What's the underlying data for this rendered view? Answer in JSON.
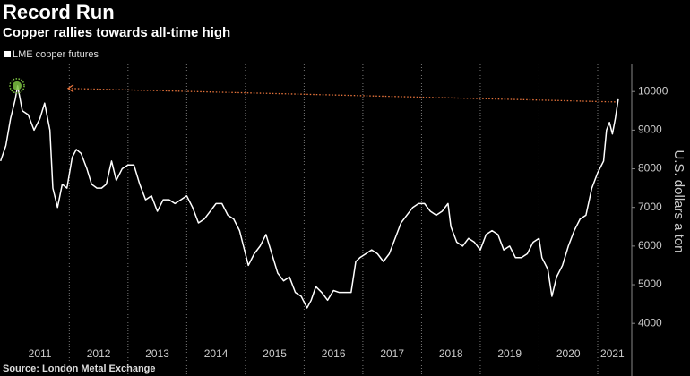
{
  "chart_data": {
    "type": "line",
    "title": "Record Run",
    "subtitle": "Copper rallies towards all-time high",
    "y_axis_label": "U.S. dollars a ton",
    "source": "Source: London Metal Exchange",
    "xlim": [
      2010.82,
      2021.58
    ],
    "ylim": [
      3680,
      10700
    ],
    "yticks": [
      4000,
      5000,
      6000,
      7000,
      8000,
      9000,
      10000
    ],
    "xticks": [
      {
        "value": 2011.5,
        "label": "2011"
      },
      {
        "value": 2012.5,
        "label": "2012"
      },
      {
        "value": 2013.5,
        "label": "2013"
      },
      {
        "value": 2014.5,
        "label": "2014"
      },
      {
        "value": 2015.5,
        "label": "2015"
      },
      {
        "value": 2016.5,
        "label": "2016"
      },
      {
        "value": 2017.5,
        "label": "2017"
      },
      {
        "value": 2018.5,
        "label": "2018"
      },
      {
        "value": 2019.5,
        "label": "2019"
      },
      {
        "value": 2020.5,
        "label": "2020"
      },
      {
        "value": 2021.25,
        "label": "2021"
      }
    ],
    "x_gridlines": [
      2012,
      2013,
      2014,
      2015,
      2016,
      2017,
      2018,
      2019,
      2020,
      2021
    ],
    "x": [
      2010.83,
      2010.92,
      2011.0,
      2011.08,
      2011.12,
      2011.2,
      2011.3,
      2011.4,
      2011.5,
      2011.58,
      2011.67,
      2011.72,
      2011.8,
      2011.88,
      2011.96,
      2012.05,
      2012.12,
      2012.2,
      2012.3,
      2012.38,
      2012.47,
      2012.55,
      2012.63,
      2012.72,
      2012.8,
      2012.9,
      2013.0,
      2013.1,
      2013.2,
      2013.3,
      2013.4,
      2013.5,
      2013.6,
      2013.7,
      2013.8,
      2013.9,
      2014.0,
      2014.1,
      2014.2,
      2014.3,
      2014.4,
      2014.5,
      2014.6,
      2014.7,
      2014.8,
      2014.9,
      2015.0,
      2015.05,
      2015.15,
      2015.25,
      2015.35,
      2015.45,
      2015.55,
      2015.65,
      2015.75,
      2015.85,
      2015.95,
      2016.05,
      2016.12,
      2016.2,
      2016.3,
      2016.4,
      2016.5,
      2016.6,
      2016.7,
      2016.8,
      2016.88,
      2016.95,
      2017.05,
      2017.15,
      2017.25,
      2017.35,
      2017.45,
      2017.55,
      2017.65,
      2017.75,
      2017.85,
      2017.95,
      2018.05,
      2018.15,
      2018.25,
      2018.35,
      2018.45,
      2018.5,
      2018.6,
      2018.7,
      2018.8,
      2018.9,
      2019.0,
      2019.1,
      2019.2,
      2019.3,
      2019.4,
      2019.5,
      2019.6,
      2019.7,
      2019.8,
      2019.9,
      2020.0,
      2020.05,
      2020.15,
      2020.22,
      2020.3,
      2020.4,
      2020.5,
      2020.6,
      2020.7,
      2020.8,
      2020.9,
      2021.0,
      2021.1,
      2021.15,
      2021.2,
      2021.25,
      2021.3,
      2021.35
    ],
    "series": [
      {
        "name": "LME copper futures",
        "color": "#ffffff",
        "values": [
          8200,
          8600,
          9300,
          9800,
          10148,
          9500,
          9400,
          9000,
          9300,
          9700,
          9000,
          7500,
          7000,
          7600,
          7500,
          8300,
          8500,
          8400,
          8000,
          7600,
          7500,
          7500,
          7600,
          8200,
          7700,
          8000,
          8100,
          8100,
          7600,
          7200,
          7300,
          6900,
          7200,
          7200,
          7100,
          7200,
          7300,
          7000,
          6600,
          6700,
          6900,
          7100,
          7100,
          6800,
          6700,
          6400,
          5800,
          5500,
          5800,
          6000,
          6300,
          5800,
          5300,
          5100,
          5200,
          4800,
          4700,
          4400,
          4600,
          4950,
          4800,
          4600,
          4850,
          4800,
          4800,
          4800,
          5600,
          5700,
          5800,
          5900,
          5800,
          5600,
          5800,
          6200,
          6600,
          6800,
          7000,
          7100,
          7100,
          6900,
          6800,
          6900,
          7100,
          6500,
          6100,
          6000,
          6200,
          6100,
          5900,
          6300,
          6400,
          6300,
          5900,
          6000,
          5700,
          5700,
          5800,
          6100,
          6200,
          5700,
          5400,
          4700,
          5200,
          5500,
          6000,
          6400,
          6700,
          6800,
          7500,
          7900,
          8200,
          9000,
          9200,
          8900,
          9300,
          9800
        ]
      }
    ],
    "highlight": {
      "x": 2011.11,
      "value": 10148,
      "color": "#7dc242"
    },
    "arrow": {
      "x": [
        2021.3,
        2011.98
      ],
      "values": [
        9730,
        10080
      ],
      "color": "#e8743b"
    }
  }
}
